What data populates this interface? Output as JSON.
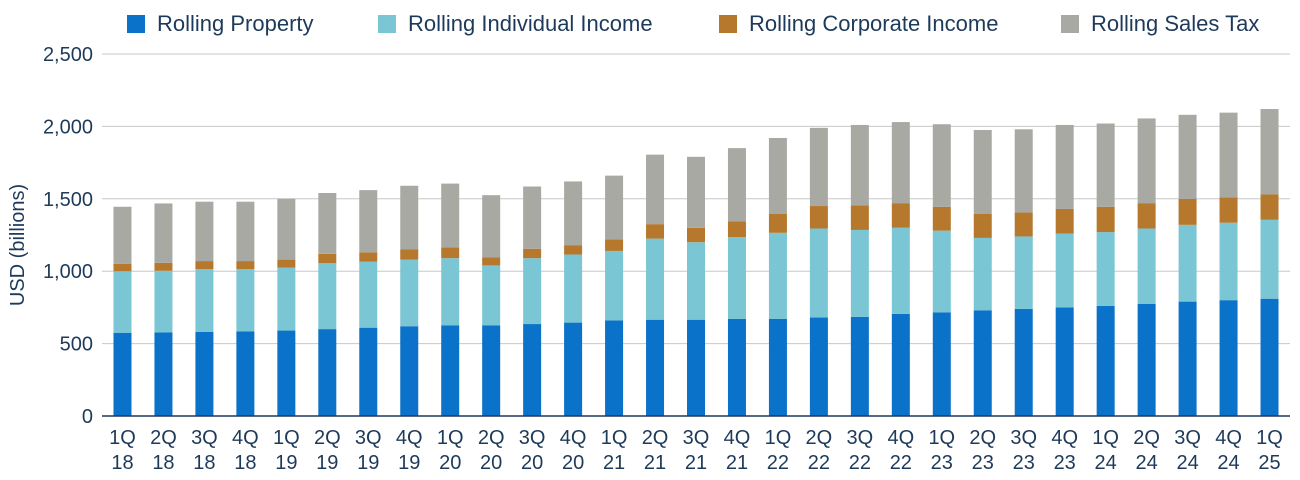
{
  "chart_data": {
    "type": "bar",
    "stacked": true,
    "title": "",
    "xlabel": "",
    "ylabel": "USD (billions)",
    "ylim": [
      0,
      2500
    ],
    "yticks": [
      0,
      500,
      1000,
      1500,
      2000,
      2500
    ],
    "ytick_labels": [
      "0",
      "500",
      "1,000",
      "1,500",
      "2,000",
      "2,500"
    ],
    "grid": true,
    "legend_position": "top",
    "categories": [
      "1Q 18",
      "2Q 18",
      "3Q 18",
      "4Q 18",
      "1Q 19",
      "2Q 19",
      "3Q 19",
      "4Q 19",
      "1Q 20",
      "2Q 20",
      "3Q 20",
      "4Q 20",
      "1Q 21",
      "2Q 21",
      "3Q 21",
      "4Q 21",
      "1Q 22",
      "2Q 22",
      "3Q 22",
      "4Q 22",
      "1Q 23",
      "2Q 23",
      "3Q 23",
      "4Q 23",
      "1Q 24",
      "2Q 24",
      "3Q 24",
      "4Q 24",
      "1Q 25"
    ],
    "series": [
      {
        "name": "Rolling Property",
        "color": "#0a72c8",
        "values": [
          575,
          578,
          580,
          585,
          590,
          600,
          610,
          620,
          625,
          625,
          635,
          645,
          660,
          665,
          665,
          670,
          670,
          680,
          685,
          705,
          715,
          730,
          740,
          750,
          760,
          775,
          790,
          800,
          810
        ]
      },
      {
        "name": "Rolling Individual Income",
        "color": "#7ac6d4",
        "values": [
          425,
          425,
          435,
          430,
          435,
          455,
          455,
          460,
          465,
          415,
          455,
          470,
          480,
          560,
          535,
          565,
          595,
          615,
          600,
          595,
          565,
          500,
          500,
          510,
          510,
          520,
          530,
          535,
          545
        ]
      },
      {
        "name": "Rolling Corporate Income",
        "color": "#b6782c",
        "values": [
          50,
          55,
          55,
          55,
          55,
          65,
          65,
          70,
          75,
          55,
          65,
          65,
          80,
          100,
          100,
          110,
          130,
          155,
          170,
          170,
          165,
          165,
          165,
          170,
          175,
          175,
          180,
          175,
          175
        ]
      },
      {
        "name": "Rolling Sales Tax",
        "color": "#a9a9a4",
        "values": [
          395,
          410,
          410,
          410,
          420,
          420,
          430,
          440,
          440,
          430,
          430,
          440,
          440,
          480,
          490,
          505,
          525,
          540,
          555,
          560,
          570,
          580,
          575,
          580,
          575,
          585,
          580,
          585,
          590
        ]
      }
    ]
  }
}
